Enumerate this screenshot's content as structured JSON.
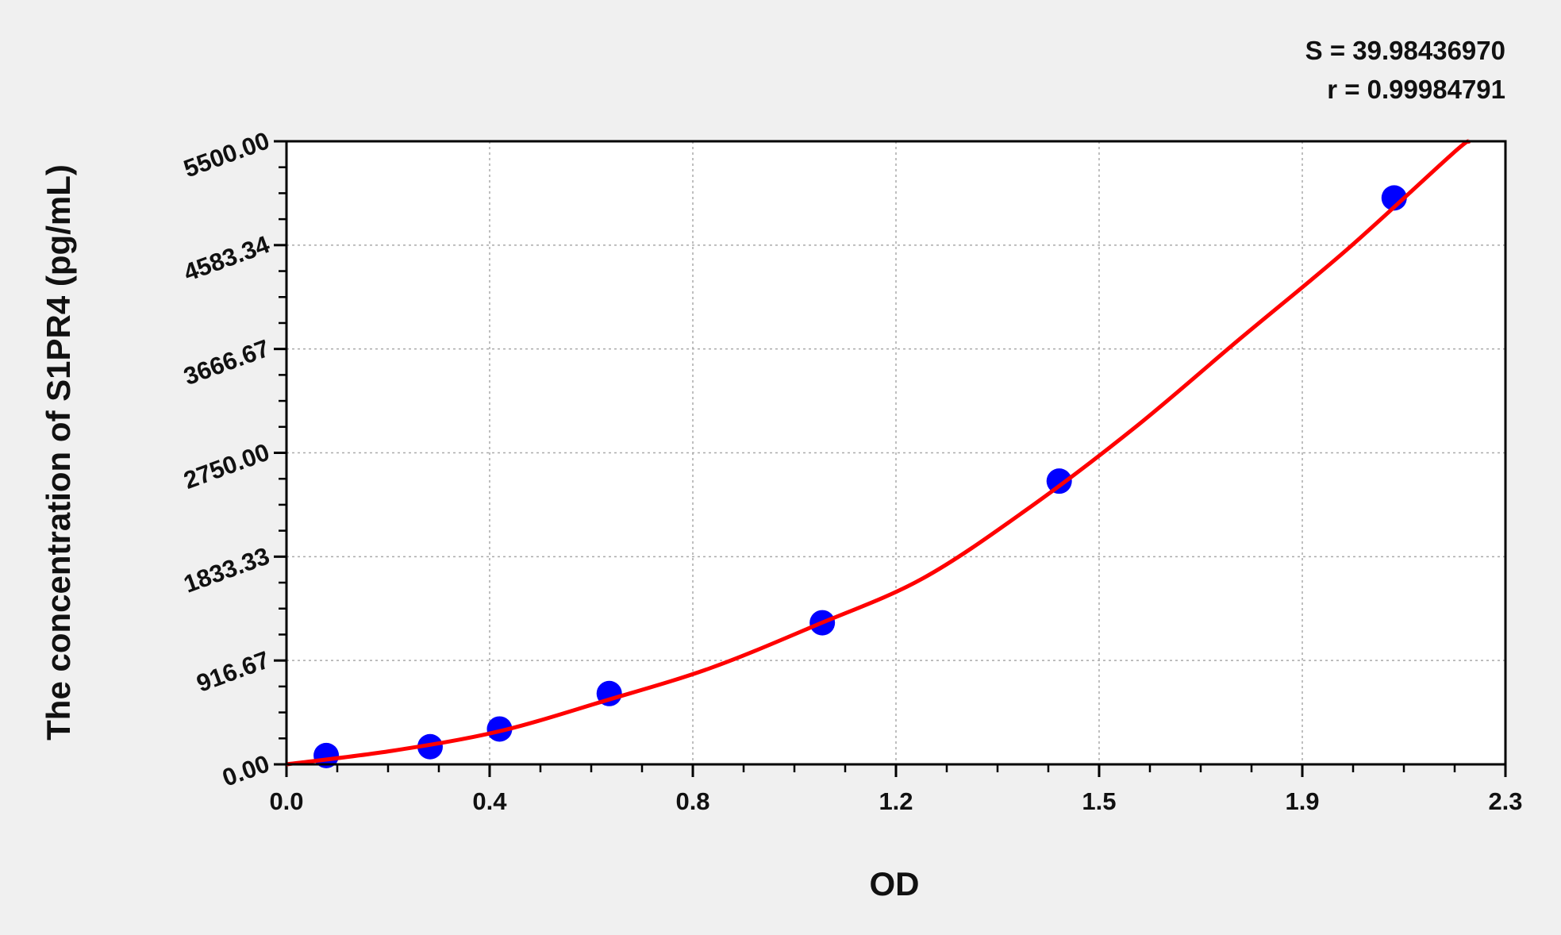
{
  "chart_data": {
    "type": "scatter",
    "title": "",
    "stats": [
      "S = 39.98436970",
      "r = 0.99984791"
    ],
    "xlabel": "OD",
    "ylabel": "The concentration of S1PR4 (pg/mL)",
    "xlim": [
      0,
      2.3
    ],
    "ylim": [
      0,
      5500
    ],
    "x_ticks": [
      0,
      0.3833,
      0.7667,
      1.15,
      1.5333,
      1.9167,
      2.3
    ],
    "x_tick_labels": [
      "0.0",
      "0.4",
      "0.8",
      "1.2",
      "1.5",
      "1.9",
      "2.3"
    ],
    "y_ticks": [
      0,
      916.67,
      1833.33,
      2750,
      3666.67,
      4583.34,
      5500
    ],
    "y_tick_labels": [
      "0.00",
      "916.67",
      "1833.33",
      "2750.00",
      "3666.67",
      "4583.34",
      "5500.00"
    ],
    "grid": true,
    "points": {
      "x": [
        0.075,
        0.271,
        0.402,
        0.609,
        1.011,
        1.458,
        2.09
      ],
      "y": [
        78,
        156,
        312,
        625,
        1250,
        2500,
        5000
      ],
      "color": "#0000ff"
    },
    "fit_curve": {
      "x": [
        0,
        0.2,
        0.4,
        0.6,
        0.8,
        1.0,
        1.2,
        1.4,
        1.6,
        1.8,
        2.0,
        2.2,
        2.232
      ],
      "y": [
        0,
        120,
        290,
        560,
        850,
        1230,
        1640,
        2260,
        2970,
        3760,
        4540,
        5390,
        5500
      ],
      "color": "#ff0000"
    }
  }
}
